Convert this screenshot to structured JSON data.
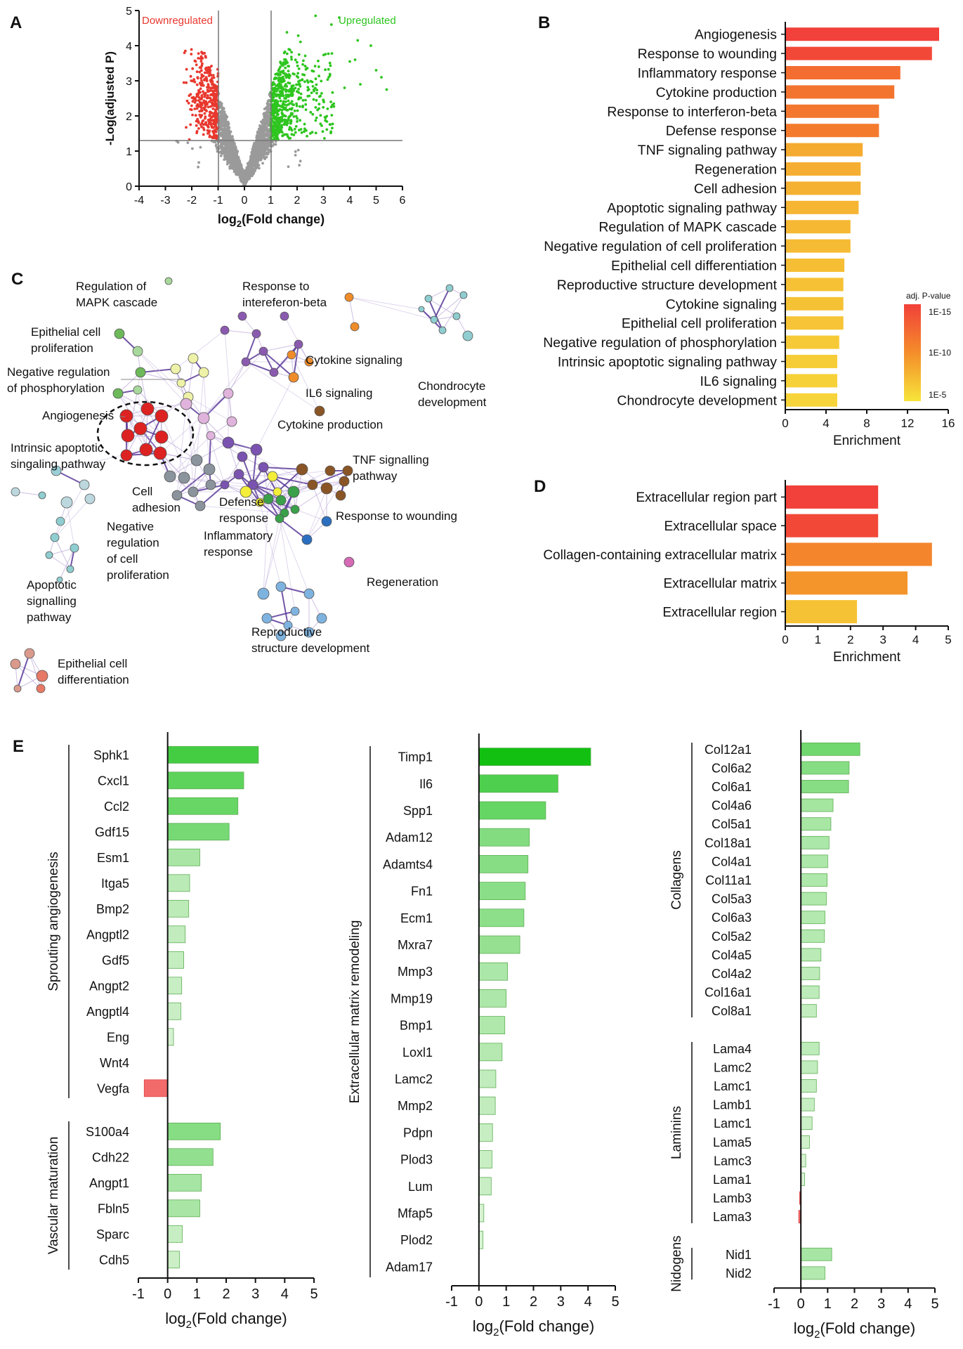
{
  "panel_letters": {
    "a": "A",
    "b": "B",
    "c": "C",
    "d": "D",
    "e": "E"
  },
  "colors": {
    "red": "#e8382e",
    "up_green": "#2ec51f",
    "grey": "#9a9a9a",
    "bar_red": "#f2403a",
    "bar_orange": "#f48d2a",
    "bar_yellow": "#f7d23a"
  },
  "chart_data": [
    {
      "id": "A",
      "type": "scatter",
      "title": "",
      "xlabel_parts": {
        "pre": "log",
        "sub": "2",
        "post": "(Fold change)"
      },
      "ylabel": "-Log(adjusted P)",
      "xlim": [
        -4,
        6
      ],
      "ylim": [
        0,
        5
      ],
      "xticks": [
        "-4",
        "-3",
        "-2",
        "-1",
        "0",
        "1",
        "2",
        "3",
        "4",
        "5",
        "6"
      ],
      "yticks": [
        "0",
        "1",
        "2",
        "3",
        "4",
        "5"
      ],
      "thresholds": {
        "fold_change": [
          -1,
          1
        ],
        "p": 1.3
      },
      "annotations": {
        "down": "Downregulated",
        "up": "Upregulated"
      },
      "note": "volcano plot of thousands of genes; grey = not significant, red = downregulated, green = upregulated"
    },
    {
      "id": "B",
      "type": "bar",
      "orientation": "horizontal",
      "categories": [
        "Angiogenesis",
        "Response to wounding",
        "Inflammatory response",
        "Cytokine production",
        "Response to interferon-beta",
        "Defense response",
        "TNF signaling pathway",
        "Regeneration",
        "Cell adhesion",
        "Apoptotic signaling pathway",
        "Regulation of MAPK cascade",
        "Negative regulation of cell proliferation",
        "Epithelial cell differentiation",
        "Reproductive structure development",
        "Cytokine signaling",
        "Epithelial cell proliferation",
        "Negative regulation of phosphorylation",
        "Intrinsic apoptotic signaling pathway",
        "IL6 signaling",
        "Chondrocyte development"
      ],
      "values": [
        15.1,
        14.4,
        11.3,
        10.7,
        9.2,
        9.2,
        7.6,
        7.4,
        7.4,
        7.2,
        6.4,
        6.4,
        5.8,
        5.7,
        5.7,
        5.7,
        5.3,
        5.1,
        5.1,
        5.1
      ],
      "color_values": [
        0.0,
        0.05,
        0.3,
        0.34,
        0.36,
        0.38,
        0.7,
        0.72,
        0.74,
        0.76,
        0.78,
        0.8,
        0.82,
        0.84,
        0.85,
        0.86,
        0.9,
        0.92,
        0.95,
        0.97
      ],
      "xlabel": "Enrichment",
      "xlim": [
        0,
        16
      ],
      "xticks": [
        "0",
        "4",
        "8",
        "12",
        "16"
      ],
      "legend": {
        "title": "adj. P-value",
        "labels": [
          "1E-15",
          "1E-10",
          "1E-5"
        ]
      }
    },
    {
      "id": "C",
      "type": "network",
      "labels": [
        "Regulation of\nMAPK cascade",
        "Response to\nintereferon-beta",
        "Epithelial cell\nproliferation",
        "Negative regulation\nof phosphorylation",
        "Cytokine signaling",
        "Chondrocyte\ndevelopment",
        "IL6 signaling",
        "Angiogenesis",
        "Cytokine production",
        "Intrinsic apoptotic\nsingaling pathway",
        "TNF signalling\npathway",
        "Cell\nadhesion",
        "Defense\nresponse",
        "Negative\nregulation\nof cell\nproliferation",
        "Response to wounding",
        "Inflammatory\nresponse",
        "Apoptotic\nsignalling\npathway",
        "Regeneration",
        "Reproductive\nstructure development",
        "Epithelial cell\ndifferentiation"
      ]
    },
    {
      "id": "D",
      "type": "bar",
      "orientation": "horizontal",
      "categories": [
        "Extracellular region part",
        "Extracellular space",
        "Collagen-containing extracellular matrix",
        "Extracellular matrix",
        "Extracellular region"
      ],
      "values": [
        2.85,
        2.85,
        4.5,
        3.75,
        2.2
      ],
      "color_values": [
        0.0,
        0.05,
        0.45,
        0.55,
        0.85
      ],
      "xlabel": "Enrichment",
      "xlim": [
        0,
        5
      ],
      "xticks": [
        "0",
        "1",
        "2",
        "3",
        "4",
        "5"
      ]
    },
    {
      "id": "E1",
      "type": "bar",
      "orientation": "horizontal",
      "xlabel_parts": {
        "pre": "log",
        "sub": "2",
        "post": "(Fold change)"
      },
      "xlim": [
        -1,
        5
      ],
      "xticks": [
        "-1",
        "0",
        "1",
        "2",
        "3",
        "4",
        "5"
      ],
      "groups": [
        {
          "name": "Sprouting angiogenesis",
          "categories": [
            "Sphk1",
            "Cxcl1",
            "Ccl2",
            "Gdf15",
            "Esm1",
            "Itga5",
            "Bmp2",
            "Angptl2",
            "Gdf5",
            "Angpt2",
            "Angptl4",
            "Eng",
            "Wnt4",
            "Vegfa"
          ],
          "values": [
            3.1,
            2.6,
            2.4,
            2.1,
            1.1,
            0.75,
            0.72,
            0.6,
            0.55,
            0.48,
            0.45,
            0.2,
            0.0,
            -0.8
          ]
        },
        {
          "name": "Vascular maturation",
          "categories": [
            "S100a4",
            "Cdh22",
            "Angpt1",
            "Fbln5",
            "Sparc",
            "Cdh5"
          ],
          "values": [
            1.8,
            1.55,
            1.15,
            1.1,
            0.5,
            0.4
          ]
        }
      ]
    },
    {
      "id": "E2",
      "type": "bar",
      "orientation": "horizontal",
      "xlabel_parts": {
        "pre": "log",
        "sub": "2",
        "post": "(Fold change)"
      },
      "xlim": [
        -1,
        5
      ],
      "xticks": [
        "-1",
        "0",
        "1",
        "2",
        "3",
        "4",
        "5"
      ],
      "groups": [
        {
          "name": "Extracellular matrix remodeling",
          "categories": [
            "Timp1",
            "Il6",
            "Spp1",
            "Adam12",
            "Adamts4",
            "Fn1",
            "Ecm1",
            "Mxra7",
            "Mmp3",
            "Mmp19",
            "Bmp1",
            "Loxl1",
            "Lamc2",
            "Mmp2",
            "Pdpn",
            "Plod3",
            "Lum",
            "Mfap5",
            "Plod2",
            "Adam17"
          ],
          "values": [
            4.1,
            2.9,
            2.45,
            1.85,
            1.8,
            1.7,
            1.65,
            1.5,
            1.05,
            1.0,
            0.95,
            0.85,
            0.62,
            0.6,
            0.5,
            0.48,
            0.45,
            0.18,
            0.15,
            0.0
          ]
        }
      ]
    },
    {
      "id": "E3",
      "type": "bar",
      "orientation": "horizontal",
      "xlabel_parts": {
        "pre": "log",
        "sub": "2",
        "post": "(Fold change)"
      },
      "xlim": [
        -1,
        5
      ],
      "xticks": [
        "-1",
        "0",
        "1",
        "2",
        "3",
        "4",
        "5"
      ],
      "groups": [
        {
          "name": "Collagens",
          "categories": [
            "Col12a1",
            "Col6a2",
            "Col6a1",
            "Col4a6",
            "Col5a1",
            "Col18a1",
            "Col4a1",
            "Col11a1",
            "Col5a3",
            "Col6a3",
            "Col5a2",
            "Col4a5",
            "Col4a2",
            "Col16a1",
            "Col8a1"
          ],
          "values": [
            2.2,
            1.8,
            1.78,
            1.2,
            1.12,
            1.05,
            1.0,
            0.98,
            0.95,
            0.9,
            0.88,
            0.75,
            0.7,
            0.68,
            0.58
          ]
        },
        {
          "name": "Laminins",
          "categories": [
            "Lama4",
            "Lamc2",
            "Lamc1",
            "Lamb1",
            "Lamc1",
            "Lama5",
            "Lamc3",
            "Lama1",
            "Lamb3",
            "Lama3"
          ],
          "values": [
            0.68,
            0.62,
            0.58,
            0.5,
            0.42,
            0.32,
            0.18,
            0.14,
            -0.05,
            -0.08
          ]
        },
        {
          "name": "Nidogens",
          "categories": [
            "Nid1",
            "Nid2"
          ],
          "values": [
            1.15,
            0.9
          ]
        }
      ]
    }
  ]
}
